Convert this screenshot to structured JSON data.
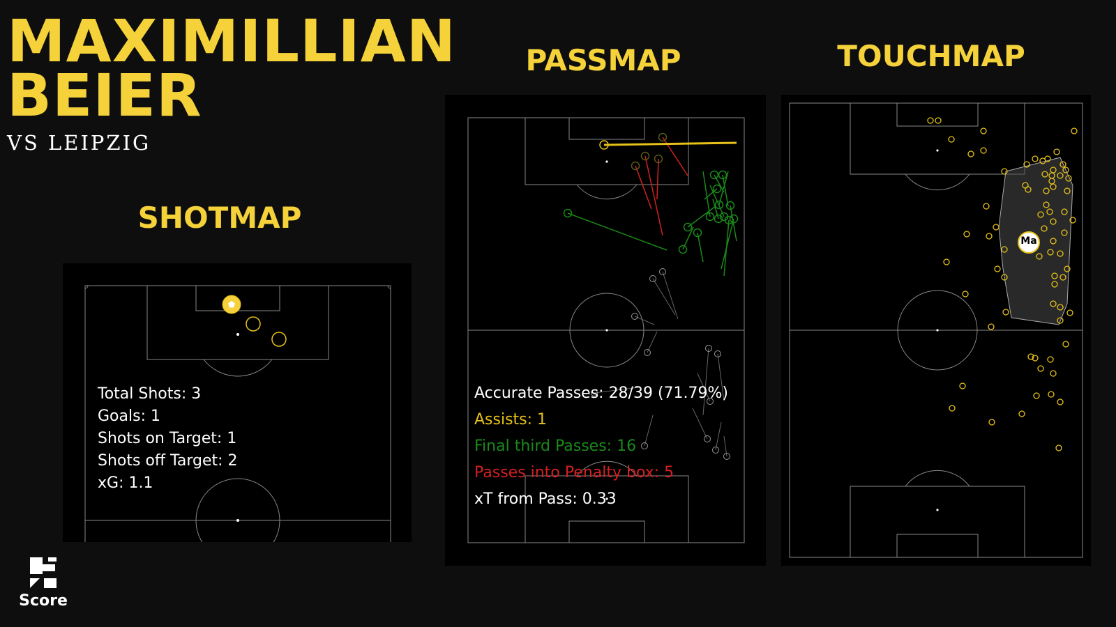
{
  "player": {
    "first_name": "MAXIMILLIAN",
    "last_name": "BEIER",
    "opponent_line": "VS LEIPZIG"
  },
  "sections": {
    "shotmap": "SHOTMAP",
    "passmap": "PASSMAP",
    "touchmap": "TOUCHMAP"
  },
  "colors": {
    "background": "#0e0e0e",
    "accent_yellow": "#f5d23a",
    "assist": "#e8c21a",
    "final_third": "#1a8a1a",
    "penalty_box": "#d42020",
    "neutral": "#8a8a8a"
  },
  "shotmap": {
    "stats": [
      {
        "label": "Total Shots: 3",
        "color": "#ffffff"
      },
      {
        "label": "Goals: 1",
        "color": "#ffffff"
      },
      {
        "label": "Shots on Target: 1",
        "color": "#ffffff"
      },
      {
        "label": "Shots off Target: 2",
        "color": "#ffffff"
      },
      {
        "label": "xG: 1.1",
        "color": "#ffffff"
      }
    ],
    "goal_icon": "football-icon"
  },
  "passmap": {
    "stats": [
      {
        "label": "Accurate Passes: 28/39 (71.79%)",
        "color": "#ffffff"
      },
      {
        "label": "Assists: 1",
        "color": "#e8c21a"
      },
      {
        "label": "Final third Passes: 16",
        "color": "#1a8a1a"
      },
      {
        "label": "Passes into Penalty box: 5",
        "color": "#d42020"
      },
      {
        "label": "xT from Pass: 0.33",
        "color": "#ffffff"
      }
    ]
  },
  "touchmap": {
    "average_position_label": "Ma"
  },
  "brand": {
    "logo_icon": "sofascore-logo-icon",
    "name": "Score"
  }
}
